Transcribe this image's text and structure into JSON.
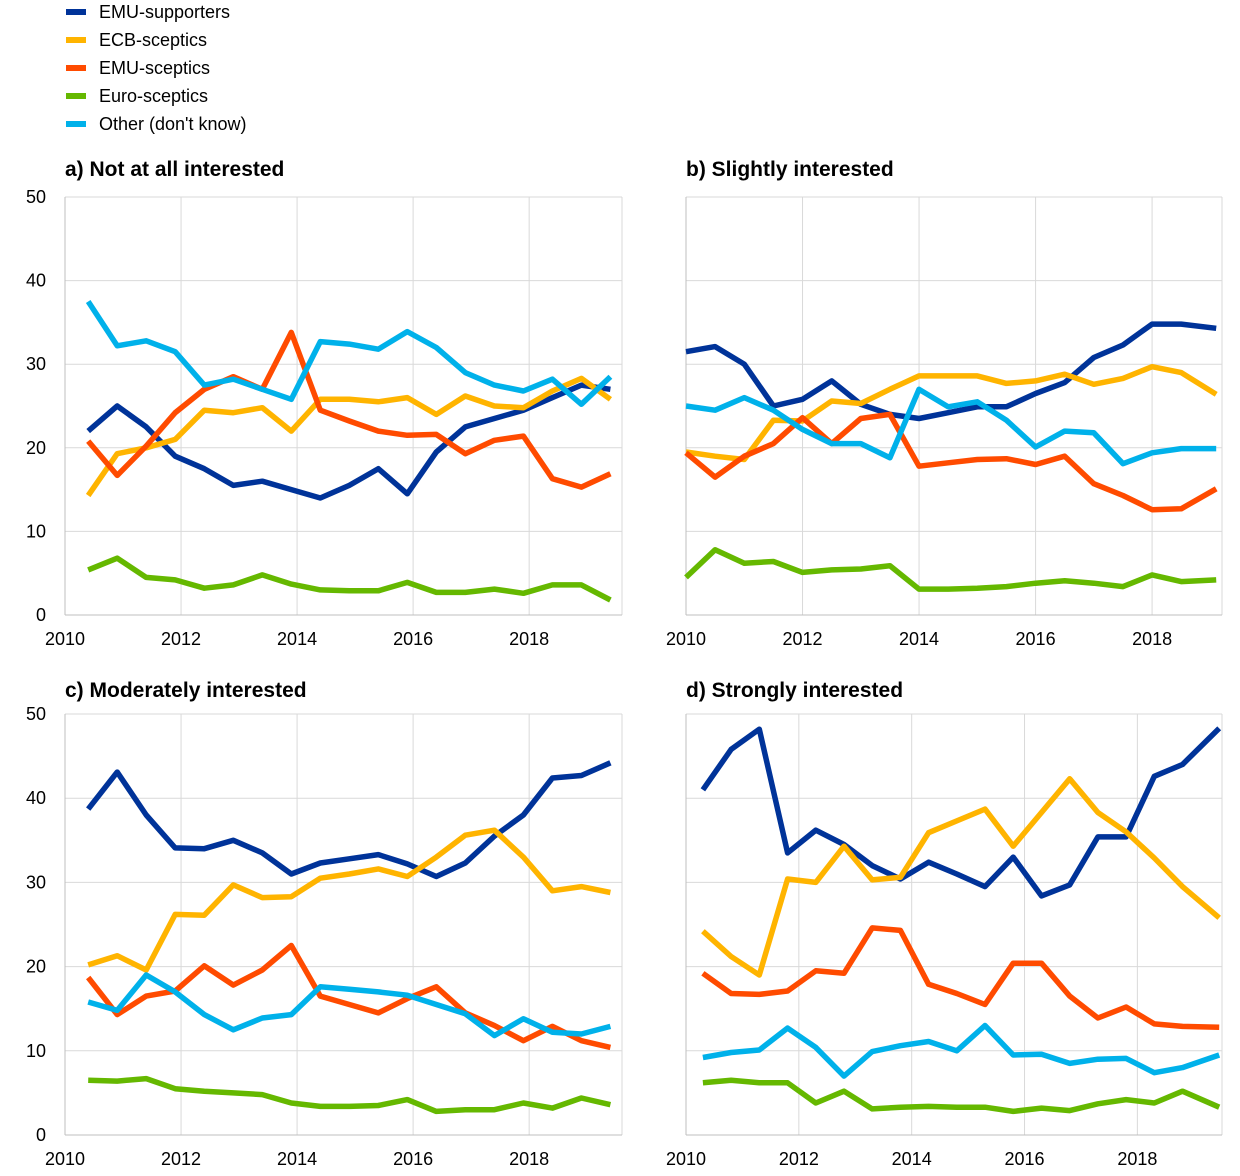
{
  "legend": [
    {
      "key": "emu_supporters",
      "label": "EMU-supporters",
      "color": "#003399"
    },
    {
      "key": "ecb_sceptics",
      "label": "ECB-sceptics",
      "color": "#FFB400"
    },
    {
      "key": "emu_sceptics",
      "label": "EMU-sceptics",
      "color": "#FF4B00"
    },
    {
      "key": "euro_sceptics",
      "label": "Euro-sceptics",
      "color": "#65B800"
    },
    {
      "key": "other",
      "label": "Other (don't know)",
      "color": "#00B1EA"
    }
  ],
  "chart_data": [
    {
      "type": "line",
      "title": "a) Not at all interested",
      "xlim": [
        2010,
        2019.6
      ],
      "ylim": [
        0,
        50
      ],
      "x_ticks": [
        2010,
        2012,
        2014,
        2016,
        2018
      ],
      "y_ticks": [
        0,
        10,
        20,
        30,
        40,
        50
      ],
      "x": [
        2010.4,
        2010.9,
        2011.4,
        2011.9,
        2012.4,
        2012.9,
        2013.4,
        2013.9,
        2014.4,
        2014.9,
        2015.4,
        2015.9,
        2016.4,
        2016.9,
        2017.4,
        2017.9,
        2018.4,
        2018.9,
        2019.4
      ],
      "series": [
        {
          "key": "emu_supporters",
          "values": [
            22,
            25,
            22.5,
            19,
            17.5,
            15.5,
            16,
            15,
            14,
            15.5,
            17.5,
            14.5,
            19.5,
            22.5,
            23.5,
            24.5,
            26,
            27.5,
            27
          ]
        },
        {
          "key": "ecb_sceptics",
          "values": [
            14.3,
            19.3,
            20,
            21,
            24.5,
            24.2,
            24.8,
            22,
            25.8,
            25.8,
            25.5,
            26,
            24,
            26.2,
            25,
            24.8,
            26.8,
            28.3,
            25.8
          ]
        },
        {
          "key": "emu_sceptics",
          "values": [
            20.8,
            16.7,
            20.2,
            24.2,
            27,
            28.5,
            27,
            33.8,
            24.5,
            23.2,
            22,
            21.5,
            21.6,
            19.3,
            20.9,
            21.4,
            16.3,
            15.3,
            16.9
          ]
        },
        {
          "key": "euro_sceptics",
          "values": [
            5.4,
            6.8,
            4.5,
            4.2,
            3.2,
            3.6,
            4.8,
            3.7,
            3,
            2.9,
            2.9,
            3.9,
            2.7,
            2.7,
            3.1,
            2.6,
            3.6,
            3.6,
            1.8
          ]
        },
        {
          "key": "other",
          "values": [
            37.5,
            32.2,
            32.8,
            31.5,
            27.5,
            28.2,
            27,
            25.8,
            32.7,
            32.4,
            31.8,
            33.9,
            32,
            29,
            27.5,
            26.8,
            28.2,
            25.2,
            28.5
          ]
        }
      ]
    },
    {
      "type": "line",
      "title": "b) Slightly interested",
      "xlim": [
        2010,
        2019.2
      ],
      "ylim": [
        0,
        50
      ],
      "x_ticks": [
        2010,
        2012,
        2014,
        2016,
        2018
      ],
      "y_ticks": [
        0,
        10,
        20,
        30,
        40,
        50
      ],
      "x": [
        2010,
        2010.5,
        2011,
        2011.5,
        2012,
        2012.5,
        2013,
        2013.5,
        2014,
        2014.5,
        2015,
        2015.5,
        2016,
        2016.5,
        2017,
        2017.5,
        2018,
        2018.5,
        2019.1
      ],
      "series": [
        {
          "key": "emu_supporters",
          "values": [
            31.5,
            32.1,
            30,
            25,
            25.8,
            28,
            25.2,
            24,
            23.5,
            24.2,
            24.9,
            24.9,
            26.5,
            27.8,
            30.8,
            32.3,
            34.8,
            34.8,
            34.3
          ]
        },
        {
          "key": "ecb_sceptics",
          "values": [
            19.5,
            19,
            18.6,
            23.3,
            23.2,
            25.6,
            25.3,
            27,
            28.6,
            28.6,
            28.6,
            27.7,
            28,
            28.8,
            27.6,
            28.3,
            29.7,
            29,
            26.4
          ]
        },
        {
          "key": "emu_sceptics",
          "values": [
            19.4,
            16.5,
            19,
            20.5,
            23.6,
            20.5,
            23.5,
            24,
            17.8,
            18.2,
            18.6,
            18.7,
            18,
            19,
            15.7,
            14.3,
            12.6,
            12.7,
            15.1
          ]
        },
        {
          "key": "euro_sceptics",
          "values": [
            4.5,
            7.8,
            6.2,
            6.4,
            5.1,
            5.4,
            5.5,
            5.9,
            3.1,
            3.1,
            3.2,
            3.4,
            3.8,
            4.1,
            3.8,
            3.4,
            4.8,
            4,
            4.2
          ]
        },
        {
          "key": "other",
          "values": [
            25,
            24.5,
            26,
            24.5,
            22.2,
            20.5,
            20.5,
            18.8,
            27,
            24.9,
            25.5,
            23.3,
            20.1,
            22,
            21.8,
            18.1,
            19.4,
            19.9,
            19.9
          ]
        }
      ]
    },
    {
      "type": "line",
      "title": "c) Moderately interested",
      "xlim": [
        2010,
        2019.6
      ],
      "ylim": [
        0,
        50
      ],
      "x_ticks": [
        2010,
        2012,
        2014,
        2016,
        2018
      ],
      "y_ticks": [
        0,
        10,
        20,
        30,
        40,
        50
      ],
      "x": [
        2010.4,
        2010.9,
        2011.4,
        2011.9,
        2012.4,
        2012.9,
        2013.4,
        2013.9,
        2014.4,
        2014.9,
        2015.4,
        2015.9,
        2016.4,
        2016.9,
        2017.4,
        2017.9,
        2018.4,
        2018.9,
        2019.4
      ],
      "series": [
        {
          "key": "emu_supporters",
          "values": [
            38.7,
            43.1,
            38,
            34.1,
            34,
            35,
            33.5,
            31,
            32.3,
            32.8,
            33.3,
            32.2,
            30.7,
            32.3,
            35.5,
            38,
            42.4,
            42.7,
            44.2
          ]
        },
        {
          "key": "ecb_sceptics",
          "values": [
            20.2,
            21.3,
            19.6,
            26.2,
            26.1,
            29.7,
            28.2,
            28.3,
            30.5,
            31,
            31.6,
            30.7,
            33,
            35.6,
            36.2,
            33,
            29,
            29.5,
            28.8
          ]
        },
        {
          "key": "emu_sceptics",
          "values": [
            18.7,
            14.3,
            16.5,
            17.1,
            20.1,
            17.8,
            19.6,
            22.5,
            16.5,
            15.5,
            14.5,
            16.2,
            17.6,
            14.5,
            13,
            11.2,
            12.9,
            11.2,
            10.4
          ]
        },
        {
          "key": "euro_sceptics",
          "values": [
            6.5,
            6.4,
            6.7,
            5.5,
            5.2,
            5,
            4.8,
            3.8,
            3.4,
            3.4,
            3.5,
            4.2,
            2.8,
            3,
            3,
            3.8,
            3.2,
            4.4,
            3.6
          ]
        },
        {
          "key": "other",
          "values": [
            15.8,
            14.8,
            19,
            17,
            14.3,
            12.5,
            13.9,
            14.3,
            17.6,
            17.3,
            17,
            16.6,
            15.5,
            14.4,
            11.8,
            13.8,
            12.2,
            12,
            12.9
          ]
        }
      ]
    },
    {
      "type": "line",
      "title": "d) Strongly interested",
      "xlim": [
        2010,
        2019.5
      ],
      "ylim": [
        0,
        50
      ],
      "x_ticks": [
        2010,
        2012,
        2014,
        2016,
        2018
      ],
      "y_ticks": [
        0,
        10,
        20,
        30,
        40,
        50
      ],
      "x": [
        2010.3,
        2010.8,
        2011.3,
        2011.8,
        2012.3,
        2012.8,
        2013.3,
        2013.8,
        2014.3,
        2014.8,
        2015.3,
        2015.8,
        2016.3,
        2016.8,
        2017.3,
        2017.8,
        2018.3,
        2018.8,
        2019.45
      ],
      "series": [
        {
          "key": "emu_supporters",
          "values": [
            41,
            45.8,
            48.2,
            33.5,
            36.2,
            34.5,
            32,
            30.4,
            32.4,
            31,
            29.5,
            33,
            28.4,
            29.7,
            35.4,
            35.4,
            42.6,
            44,
            48.3
          ]
        },
        {
          "key": "ecb_sceptics",
          "values": [
            24.2,
            21.2,
            19,
            30.4,
            30,
            34.3,
            30.3,
            30.6,
            35.9,
            37.3,
            38.7,
            34.3,
            38.3,
            42.3,
            38.3,
            36,
            32.9,
            29.5,
            25.8
          ]
        },
        {
          "key": "emu_sceptics",
          "values": [
            19.2,
            16.8,
            16.7,
            17.1,
            19.5,
            19.2,
            24.6,
            24.3,
            17.9,
            16.8,
            15.5,
            20.4,
            20.4,
            16.5,
            13.9,
            15.2,
            13.2,
            12.9,
            12.8
          ]
        },
        {
          "key": "euro_sceptics",
          "values": [
            6.2,
            6.5,
            6.2,
            6.2,
            3.8,
            5.2,
            3.1,
            3.3,
            3.4,
            3.3,
            3.3,
            2.8,
            3.2,
            2.9,
            3.7,
            4.2,
            3.8,
            5.2,
            3.3
          ]
        },
        {
          "key": "other",
          "values": [
            9.2,
            9.8,
            10.1,
            12.7,
            10.4,
            7,
            9.9,
            10.6,
            11.1,
            10,
            13,
            9.5,
            9.6,
            8.5,
            9,
            9.1,
            7.4,
            8,
            9.5
          ]
        }
      ]
    }
  ]
}
